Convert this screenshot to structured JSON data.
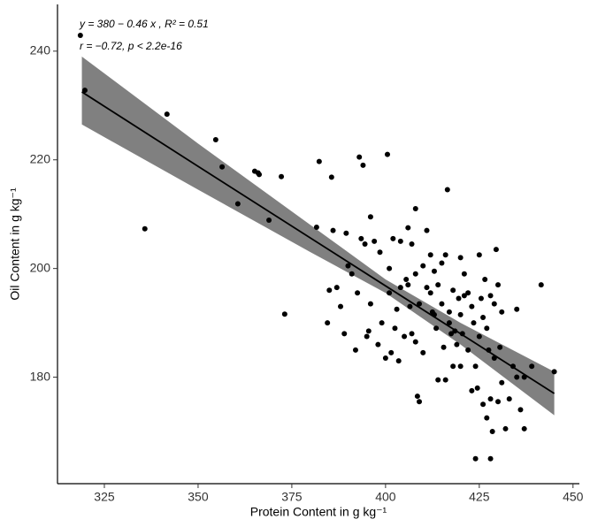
{
  "chart_data": {
    "type": "scatter",
    "annotations": [
      "y = 380 − 0.46 x , R² = 0.51",
      "r = −0.72, p < 2.2e-16"
    ],
    "x_label": "Protein Content in g kg⁻¹",
    "y_label": "Oil Content in g kg⁻¹",
    "xlim": [
      312.5,
      451.7
    ],
    "ylim": [
      160.4,
      248.6
    ],
    "xticks": [
      325,
      350,
      375,
      400,
      425,
      450
    ],
    "yticks": [
      180,
      200,
      220,
      240
    ],
    "grid": false,
    "color": "#000000",
    "x": [
      318.6,
      319.8,
      341.7,
      354.7,
      356.4,
      335.8,
      360.6,
      365.1,
      366,
      366.3,
      368.9,
      372.2,
      373.1,
      382.3,
      385.6,
      381.6,
      384.5,
      385,
      386,
      387,
      388,
      389,
      389.5,
      390,
      391,
      392,
      392.5,
      393,
      393.5,
      394,
      394.5,
      395,
      395.5,
      396,
      396,
      397,
      398,
      398.5,
      399,
      400,
      400.5,
      401,
      401,
      401.5,
      402,
      402.5,
      403,
      403.5,
      404,
      404,
      405,
      405.5,
      406,
      406,
      406.5,
      407,
      407,
      408,
      408,
      408,
      408.5,
      409,
      409,
      410,
      410,
      411,
      411,
      412,
      412,
      412.5,
      413,
      413,
      413.5,
      414,
      414,
      415,
      415,
      415.5,
      416,
      416,
      416.5,
      417,
      417,
      417.5,
      418,
      418,
      418.5,
      419,
      419.5,
      420,
      420,
      420,
      420.5,
      421,
      421,
      422,
      422,
      423,
      423,
      423.5,
      424,
      424,
      424.5,
      425,
      425,
      425.5,
      426,
      426,
      426.5,
      427,
      427,
      427.5,
      428,
      428,
      428,
      428.5,
      429,
      429,
      429.5,
      430,
      430,
      430.5,
      431,
      431,
      432,
      433,
      434,
      435,
      435,
      436,
      437,
      437,
      439,
      441.5,
      445
    ],
    "values": [
      242.9,
      232.8,
      228.4,
      223.7,
      218.7,
      207.3,
      211.9,
      217.9,
      217.6,
      217.3,
      208.9,
      216.9,
      191.6,
      219.7,
      216.8,
      207.6,
      190,
      196,
      207,
      196.5,
      193,
      188,
      206.5,
      200.5,
      199,
      185,
      195.5,
      220.5,
      205.5,
      219,
      204.5,
      187.5,
      188.5,
      209.5,
      193.5,
      205,
      186,
      203,
      190,
      183.5,
      221,
      200,
      195.5,
      184.5,
      205.5,
      189,
      192.5,
      183,
      205,
      196.5,
      187.5,
      198,
      207.5,
      197,
      193,
      204.5,
      188,
      211,
      199,
      186.5,
      176.5,
      193.5,
      175.5,
      184.5,
      200.5,
      207,
      196.5,
      202.5,
      195.5,
      192,
      199.5,
      191.5,
      189,
      197,
      179.5,
      201,
      193.5,
      185.5,
      202.5,
      179.5,
      214.5,
      192,
      190,
      188,
      196,
      182,
      188.5,
      186,
      194.5,
      202,
      191.5,
      182,
      188,
      199,
      195,
      195.5,
      185,
      193,
      177.5,
      190,
      182,
      165,
      178,
      202.5,
      187.5,
      194.5,
      191,
      175,
      198,
      189,
      172.5,
      185,
      195,
      176,
      165,
      170,
      183.5,
      193.5,
      203.5,
      197,
      175.5,
      185.5,
      179,
      192,
      170.5,
      176,
      182,
      192.5,
      180,
      174,
      170.5,
      180,
      182,
      197,
      181
    ],
    "fit": {
      "x": [
        319,
        350,
        380,
        400,
        420,
        445
      ],
      "values": [
        232.5,
        218.8,
        205.6,
        196.8,
        188.0,
        177.0
      ],
      "upper": [
        239,
        223,
        208,
        198,
        190,
        181
      ],
      "lower": [
        226.5,
        214.5,
        203,
        195.5,
        186,
        173
      ],
      "color": "#000000",
      "band_color": "#808080"
    }
  }
}
